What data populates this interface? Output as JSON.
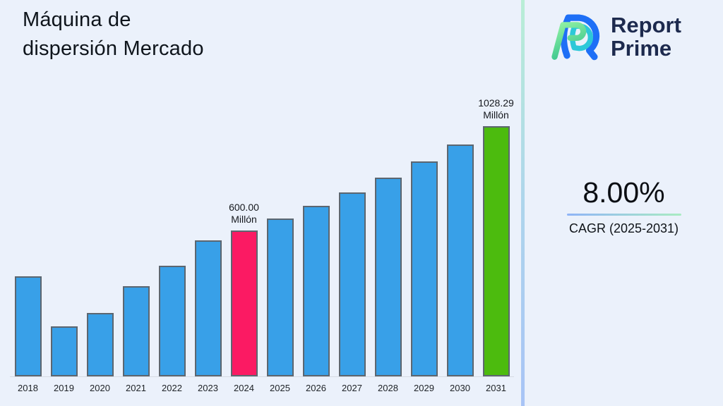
{
  "page": {
    "background": "#ebf1fb"
  },
  "header": {
    "title_line1": "Máquina de",
    "title_line2": "dispersión Mercado"
  },
  "brand": {
    "name_line1": "Report",
    "name_line2": "Prime",
    "text_color": "#1d2a4e",
    "logo_colors": {
      "blue": "#1e6ff6",
      "teal": "#2cc8d8",
      "green_light": "#92f2a3",
      "green_dark": "#3cc68f"
    }
  },
  "kpi": {
    "value": "8.00%",
    "label": "CAGR (2025-2031)",
    "underline_gradient": [
      "#8fb4f7",
      "#a9ecc2"
    ]
  },
  "divider_gradient": [
    "#b9eed6",
    "#aed5ec",
    "#a8c4f6"
  ],
  "chart_data": {
    "type": "bar",
    "title": "Máquina de dispersión Mercado",
    "unit": "Millón",
    "categories": [
      "2018",
      "2019",
      "2020",
      "2021",
      "2022",
      "2023",
      "2024",
      "2025",
      "2026",
      "2027",
      "2028",
      "2029",
      "2030",
      "2031"
    ],
    "values": [
      410,
      205,
      260,
      370,
      455,
      560,
      600,
      648,
      699.84,
      755.83,
      816.29,
      881.6,
      952.12,
      1028.29
    ],
    "ylim": [
      0,
      1100
    ],
    "grid": false,
    "legend": false,
    "xlabel": "",
    "ylabel": "",
    "default_color": "#38a0e8",
    "border_color": "#5c6670",
    "baseline_color": "#d6dbe2",
    "highlights": [
      {
        "index": 6,
        "color": "#fb1a63",
        "label_lines": [
          "600.00",
          "Millón"
        ]
      },
      {
        "index": 13,
        "color": "#4cbb0e",
        "label_lines": [
          "1028.29",
          "Millón"
        ]
      }
    ]
  }
}
